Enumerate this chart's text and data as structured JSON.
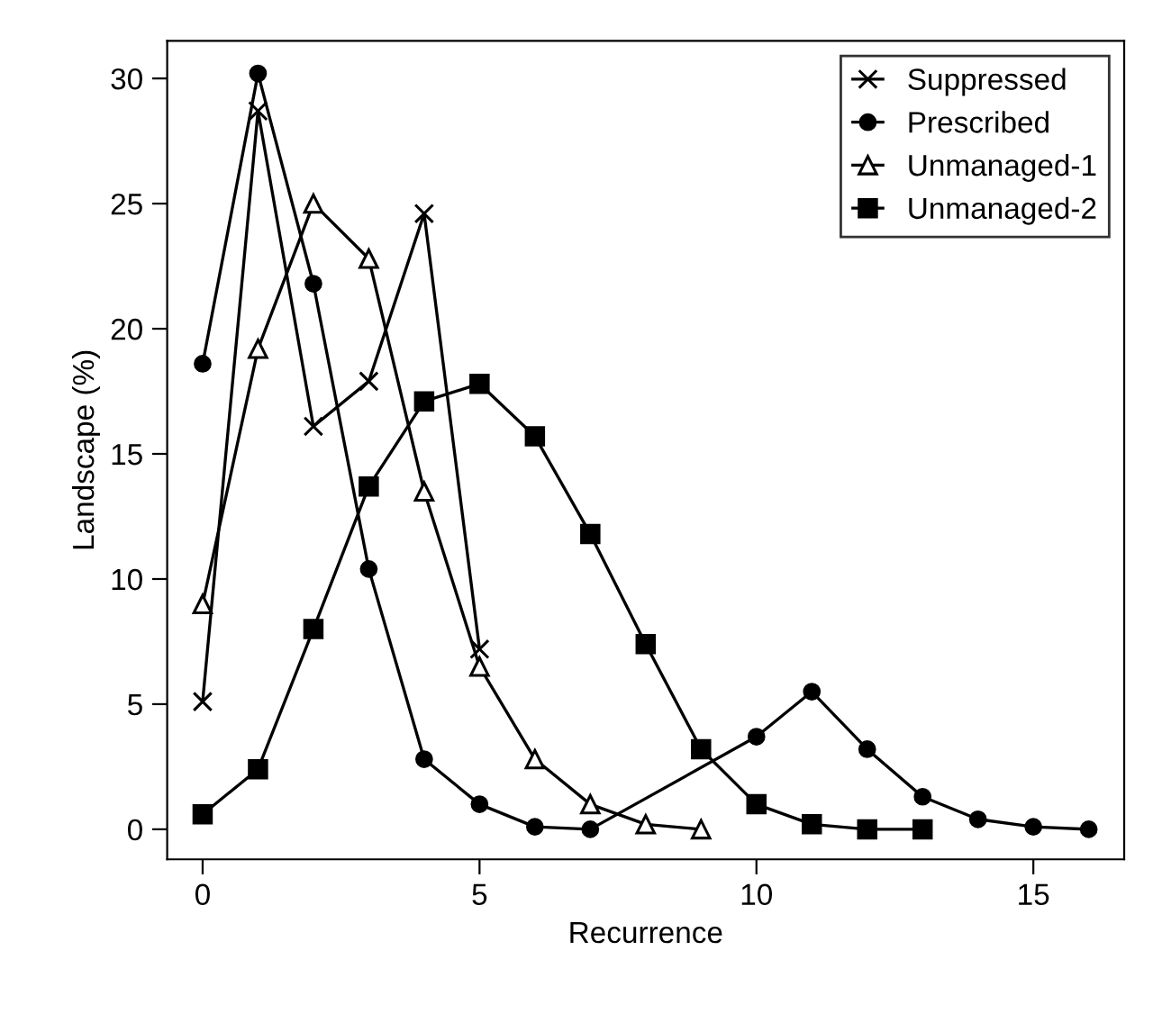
{
  "chart_data": {
    "type": "line",
    "xlabel": "Recurrence",
    "ylabel": "Landscape (%)",
    "xlim": [
      -0.64,
      16.64
    ],
    "ylim": [
      -1.2,
      31.5
    ],
    "xticks": [
      0,
      5,
      10,
      15
    ],
    "yticks": [
      0,
      5,
      10,
      15,
      20,
      25,
      30
    ],
    "grid": false,
    "legend": "top right",
    "line_style": "solid",
    "series": [
      {
        "name": "Suppressed",
        "color": "#000000",
        "marker": "cross",
        "x": [
          0,
          1,
          2,
          3,
          4,
          5
        ],
        "values": [
          5.1,
          28.7,
          16.1,
          17.9,
          24.6,
          7.2
        ]
      },
      {
        "name": "Prescribed",
        "color": "#000000",
        "marker": "circle",
        "x": [
          0,
          1,
          2,
          3,
          4,
          5,
          6,
          7,
          10,
          11,
          12,
          13,
          14,
          15,
          16
        ],
        "values": [
          18.6,
          30.2,
          21.8,
          10.4,
          2.8,
          1.0,
          0.1,
          0.0,
          3.7,
          5.5,
          3.2,
          1.3,
          0.4,
          0.1,
          0.0
        ]
      },
      {
        "name": "Unmanaged-1",
        "color": "#000000",
        "marker": "triangle",
        "x": [
          0,
          1,
          2,
          3,
          4,
          5,
          6,
          7,
          8,
          9
        ],
        "values": [
          9.0,
          19.2,
          25.0,
          22.8,
          13.5,
          6.5,
          2.8,
          1.0,
          0.2,
          0.0
        ]
      },
      {
        "name": "Unmanaged-2",
        "color": "#000000",
        "marker": "square",
        "x": [
          0,
          1,
          2,
          3,
          4,
          5,
          6,
          7,
          8,
          9,
          10,
          11,
          12,
          13
        ],
        "values": [
          0.6,
          2.4,
          8.0,
          13.7,
          17.1,
          17.8,
          15.7,
          11.8,
          7.4,
          3.2,
          1.0,
          0.2,
          0.0,
          0.0
        ]
      }
    ]
  }
}
